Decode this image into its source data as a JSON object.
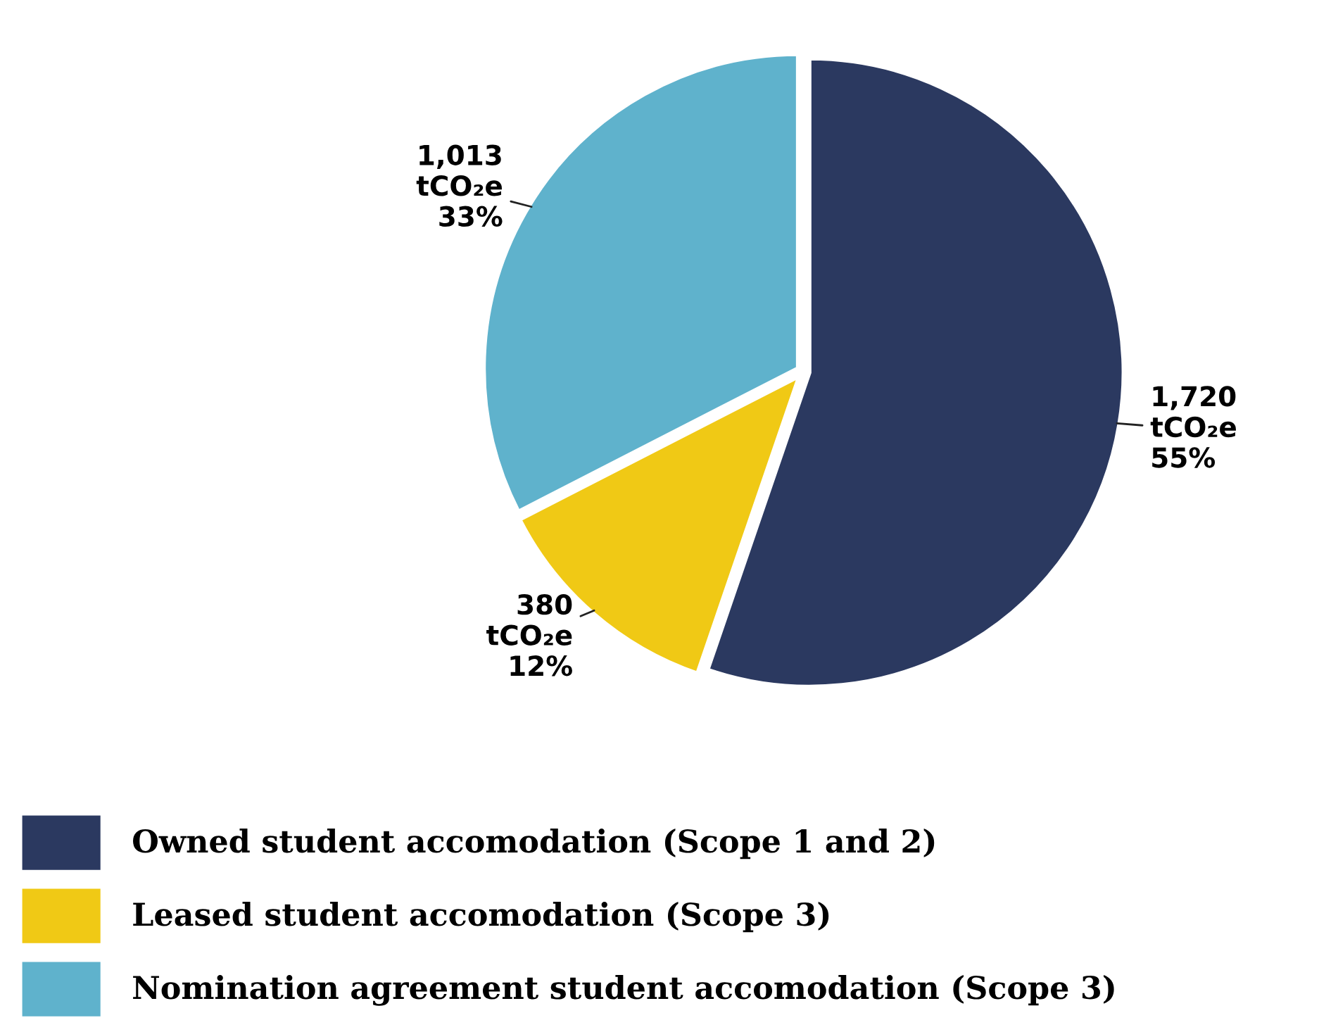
{
  "chart_data": {
    "type": "pie",
    "categories": [
      "Owned student accomodation (Scope 1 and 2)",
      "Leased student accomodation (Scope 3)",
      "Nomination agreement student accomodation (Scope 3)"
    ],
    "values": [
      1720,
      380,
      1013
    ],
    "colors": [
      "#2b3960",
      "#f0c915",
      "#5fb2cc"
    ],
    "value_labels": [
      "1,720\ntCO₂e\n55%",
      "380\ntCO₂e\n12%",
      "1,013\ntCO₂e\n33%"
    ],
    "legend": "bottom left"
  }
}
